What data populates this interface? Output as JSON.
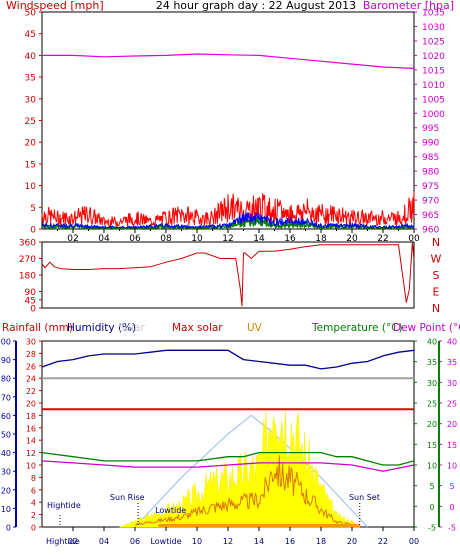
{
  "chart_data": [
    {
      "type": "line",
      "panel": "wind_baro",
      "title": "24 hour graph day : 22 August 2013",
      "ylabel_left": "Windspeed [mph]",
      "ylabel_right": "Barometer [hpa]",
      "left_ticks": [
        0,
        5,
        10,
        15,
        20,
        25,
        30,
        35,
        40,
        45,
        50
      ],
      "right_ticks": [
        960,
        965,
        970,
        975,
        980,
        985,
        990,
        995,
        1000,
        1005,
        1010,
        1015,
        1020,
        1025,
        1030,
        1035
      ],
      "x_ticks": [
        "02",
        "04",
        "06",
        "08",
        "10",
        "12",
        "14",
        "16",
        "18",
        "20",
        "22",
        "00"
      ],
      "xlim": [
        0,
        24
      ],
      "colors": {
        "gust": "#ff0000",
        "avg": "#0000ff",
        "avg10": "#008000",
        "barometer": "#dd00dd",
        "axis_left": "#cc0000",
        "axis_right": "#cc00cc"
      },
      "series": [
        {
          "name": "Barometer [hpa]",
          "color": "#dd00dd",
          "x": [
            0,
            2,
            4,
            6,
            8,
            10,
            12,
            14,
            16,
            18,
            20,
            22,
            24
          ],
          "values": [
            1020,
            1020,
            1019.5,
            1019.8,
            1020,
            1020.5,
            1020.2,
            1020,
            1019,
            1018,
            1017,
            1016,
            1015.5
          ]
        }
      ],
      "wind_gust_approx": {
        "x": [
          0,
          1,
          2,
          3,
          4,
          5,
          6,
          7,
          8,
          9,
          10,
          11,
          12,
          13,
          14,
          15,
          16,
          17,
          18,
          19,
          20,
          21,
          22,
          23,
          24
        ],
        "values": [
          4,
          3,
          3,
          4,
          2,
          2,
          3,
          2,
          3,
          4,
          3,
          3,
          6,
          5,
          6,
          5,
          4,
          5,
          4,
          4,
          3,
          3,
          3,
          3,
          6
        ]
      },
      "wind_avg_approx": {
        "x": [
          0,
          2,
          4,
          6,
          8,
          10,
          12,
          13,
          14,
          15,
          16,
          17,
          18,
          19,
          20,
          22,
          24
        ],
        "values": [
          1,
          1,
          0.5,
          0.5,
          1,
          0.5,
          1,
          3,
          3,
          2,
          2,
          2,
          1,
          1,
          1,
          0.5,
          1
        ]
      }
    },
    {
      "type": "line",
      "panel": "wind_direction",
      "right_labels": [
        "N",
        "W",
        "S",
        "E",
        "N"
      ],
      "left_ticks": [
        0,
        45,
        90,
        180,
        270,
        360
      ],
      "xlim": [
        0,
        24
      ],
      "series": [
        {
          "name": "",
          "color": "#cc0000",
          "x": [
            0,
            0.2,
            0.5,
            0.8,
            1.2,
            2,
            3,
            4,
            5,
            6,
            7,
            8,
            9,
            10,
            10.5,
            11.5,
            12.5,
            12.8,
            12.9,
            13,
            13.1,
            13.5,
            14,
            15,
            16,
            17,
            18,
            19,
            20,
            21,
            22,
            23,
            23.5,
            23.7,
            23.9,
            24
          ],
          "values": [
            240,
            220,
            250,
            225,
            215,
            210,
            210,
            215,
            215,
            220,
            225,
            250,
            270,
            300,
            300,
            270,
            270,
            100,
            10,
            300,
            300,
            270,
            310,
            310,
            320,
            335,
            345,
            345,
            345,
            345,
            345,
            345,
            30,
            100,
            360,
            260
          ]
        }
      ]
    },
    {
      "type": "line",
      "panel": "multi",
      "labels": [
        "Rainfall (mm)",
        "Humidity (%)",
        "Solar",
        "Max solar",
        "UV",
        "Temperature (°C)",
        "Dew Point (°C)"
      ],
      "left_ticks_humidity": [
        0,
        10,
        20,
        30,
        40,
        50,
        60,
        70,
        80,
        90,
        100
      ],
      "left_ticks_rain": [
        0,
        2,
        4,
        6,
        8,
        10,
        12,
        14,
        16,
        18,
        20,
        22,
        24,
        26,
        28,
        30
      ],
      "right_ticks_temp": [
        -5,
        0,
        5,
        10,
        15,
        20,
        25,
        30,
        35,
        40
      ],
      "x_ticks": [
        "Hightide",
        "02",
        "04",
        "06",
        "Lowtide",
        "10",
        "12",
        "14",
        "16",
        "18",
        "20",
        "22",
        "00"
      ],
      "annotations": [
        "Hightide",
        "Sun Rise",
        "Lowtide",
        "Sun Set"
      ],
      "colors": {
        "humidity": "#00008b",
        "maxsolar": "#dd0000",
        "solar": "#ffff00",
        "uv": "#cc8800",
        "temperature": "#008000",
        "dewpoint": "#cc00cc",
        "grey": "#a0a0a0",
        "hightide_marker": "#0000aa"
      },
      "series": [
        {
          "name": "Humidity (%)",
          "color": "#00008b",
          "x": [
            0,
            1,
            2,
            3,
            4,
            5,
            6,
            7,
            8,
            9,
            10,
            11,
            12,
            13,
            14,
            15,
            16,
            17,
            18,
            19,
            20,
            21,
            22,
            23,
            24
          ],
          "values": [
            86,
            89,
            90,
            92,
            93,
            93,
            93,
            94,
            95,
            95,
            95,
            95,
            95,
            90,
            89,
            88,
            87,
            87,
            85,
            86,
            88,
            89,
            92,
            94,
            95
          ]
        },
        {
          "name": "Temperature (°C)",
          "color": "#008000",
          "x": [
            0,
            2,
            4,
            6,
            8,
            10,
            12,
            13,
            14,
            15,
            16,
            17,
            18,
            19,
            20,
            21,
            22,
            23,
            24
          ],
          "values": [
            13,
            12,
            11,
            11,
            11,
            11,
            12,
            12,
            13,
            13,
            13,
            13,
            13,
            12,
            12,
            11,
            10,
            10,
            11
          ]
        },
        {
          "name": "Dew Point (°C)",
          "color": "#cc00cc",
          "x": [
            0,
            2,
            4,
            6,
            8,
            10,
            12,
            14,
            16,
            18,
            20,
            22,
            24
          ],
          "values": [
            11,
            10.5,
            10,
            9.5,
            9.5,
            9.5,
            10,
            10.5,
            10.5,
            10.5,
            10,
            8.5,
            10
          ]
        },
        {
          "name": "Max solar",
          "color": "#dd0000",
          "x": [
            0,
            24
          ],
          "values": [
            19,
            19
          ]
        },
        {
          "name": "",
          "color": "#a0a0a0",
          "x": [
            0,
            24
          ],
          "values": [
            30,
            30
          ]
        },
        {
          "name": "Solar",
          "color": "#ffff00",
          "x": [
            5,
            6,
            7,
            8,
            9,
            10,
            11,
            12,
            13,
            14,
            14.5,
            15,
            15.5,
            16,
            16.5,
            17,
            18,
            19,
            20,
            20.5
          ],
          "values": [
            0,
            1,
            2,
            3,
            4,
            6,
            8,
            9,
            10,
            11,
            16,
            25,
            20,
            19,
            16,
            13,
            7,
            2,
            1,
            0
          ]
        },
        {
          "name": "UV",
          "color": "#cc8800",
          "x": [
            6,
            8,
            10,
            12,
            13,
            14,
            15,
            16,
            17,
            18,
            20
          ],
          "values": [
            0,
            1,
            2,
            3,
            4,
            4,
            4,
            3,
            2,
            1,
            0
          ]
        }
      ]
    }
  ]
}
